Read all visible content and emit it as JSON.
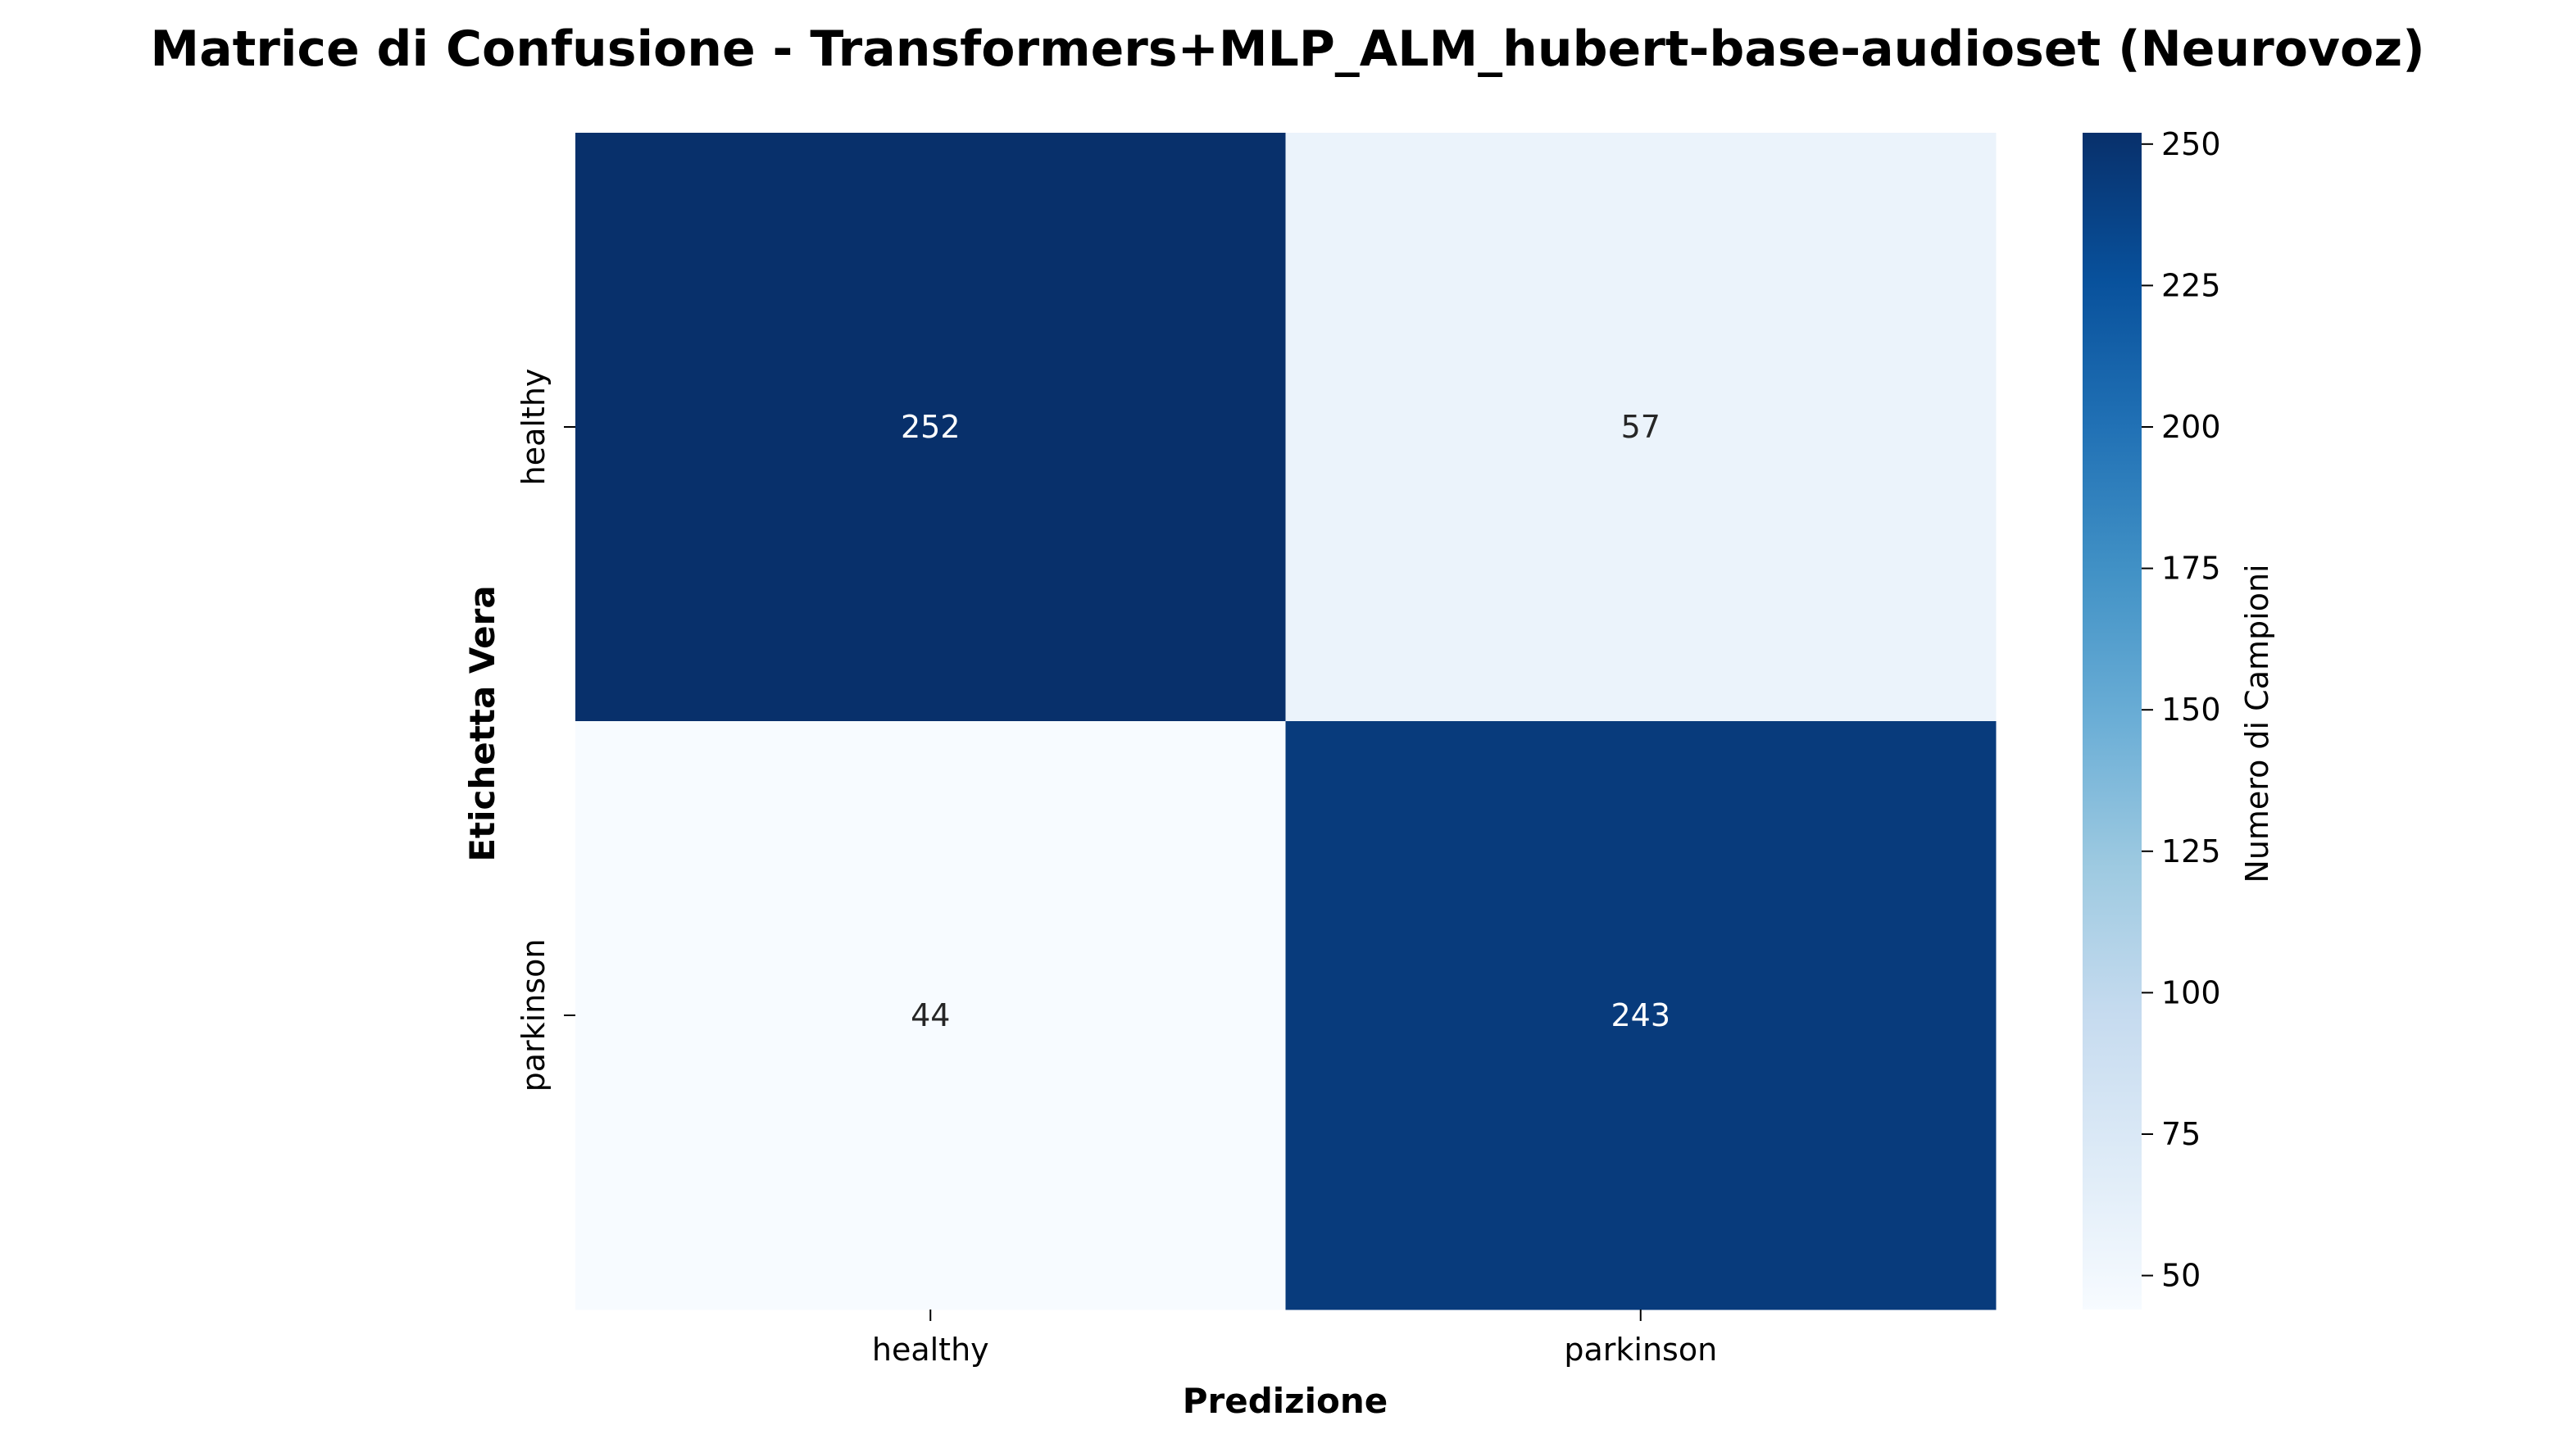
{
  "chart_data": {
    "type": "heatmap",
    "title": "Matrice di Confusione - Transformers+MLP_ALM_hubert-base-audioset (Neurovoz)",
    "xlabel": "Predizione",
    "ylabel": "Etichetta Vera",
    "x_categories": [
      "healthy",
      "parkinson"
    ],
    "y_categories": [
      "healthy",
      "parkinson"
    ],
    "values": [
      [
        252,
        57
      ],
      [
        44,
        243
      ]
    ],
    "colorbar": {
      "label": "Numero di Campioni",
      "min": 44,
      "max": 252,
      "ticks": [
        50,
        75,
        100,
        125,
        150,
        175,
        200,
        225,
        250
      ],
      "colormap": "Blues"
    },
    "grid": false
  }
}
